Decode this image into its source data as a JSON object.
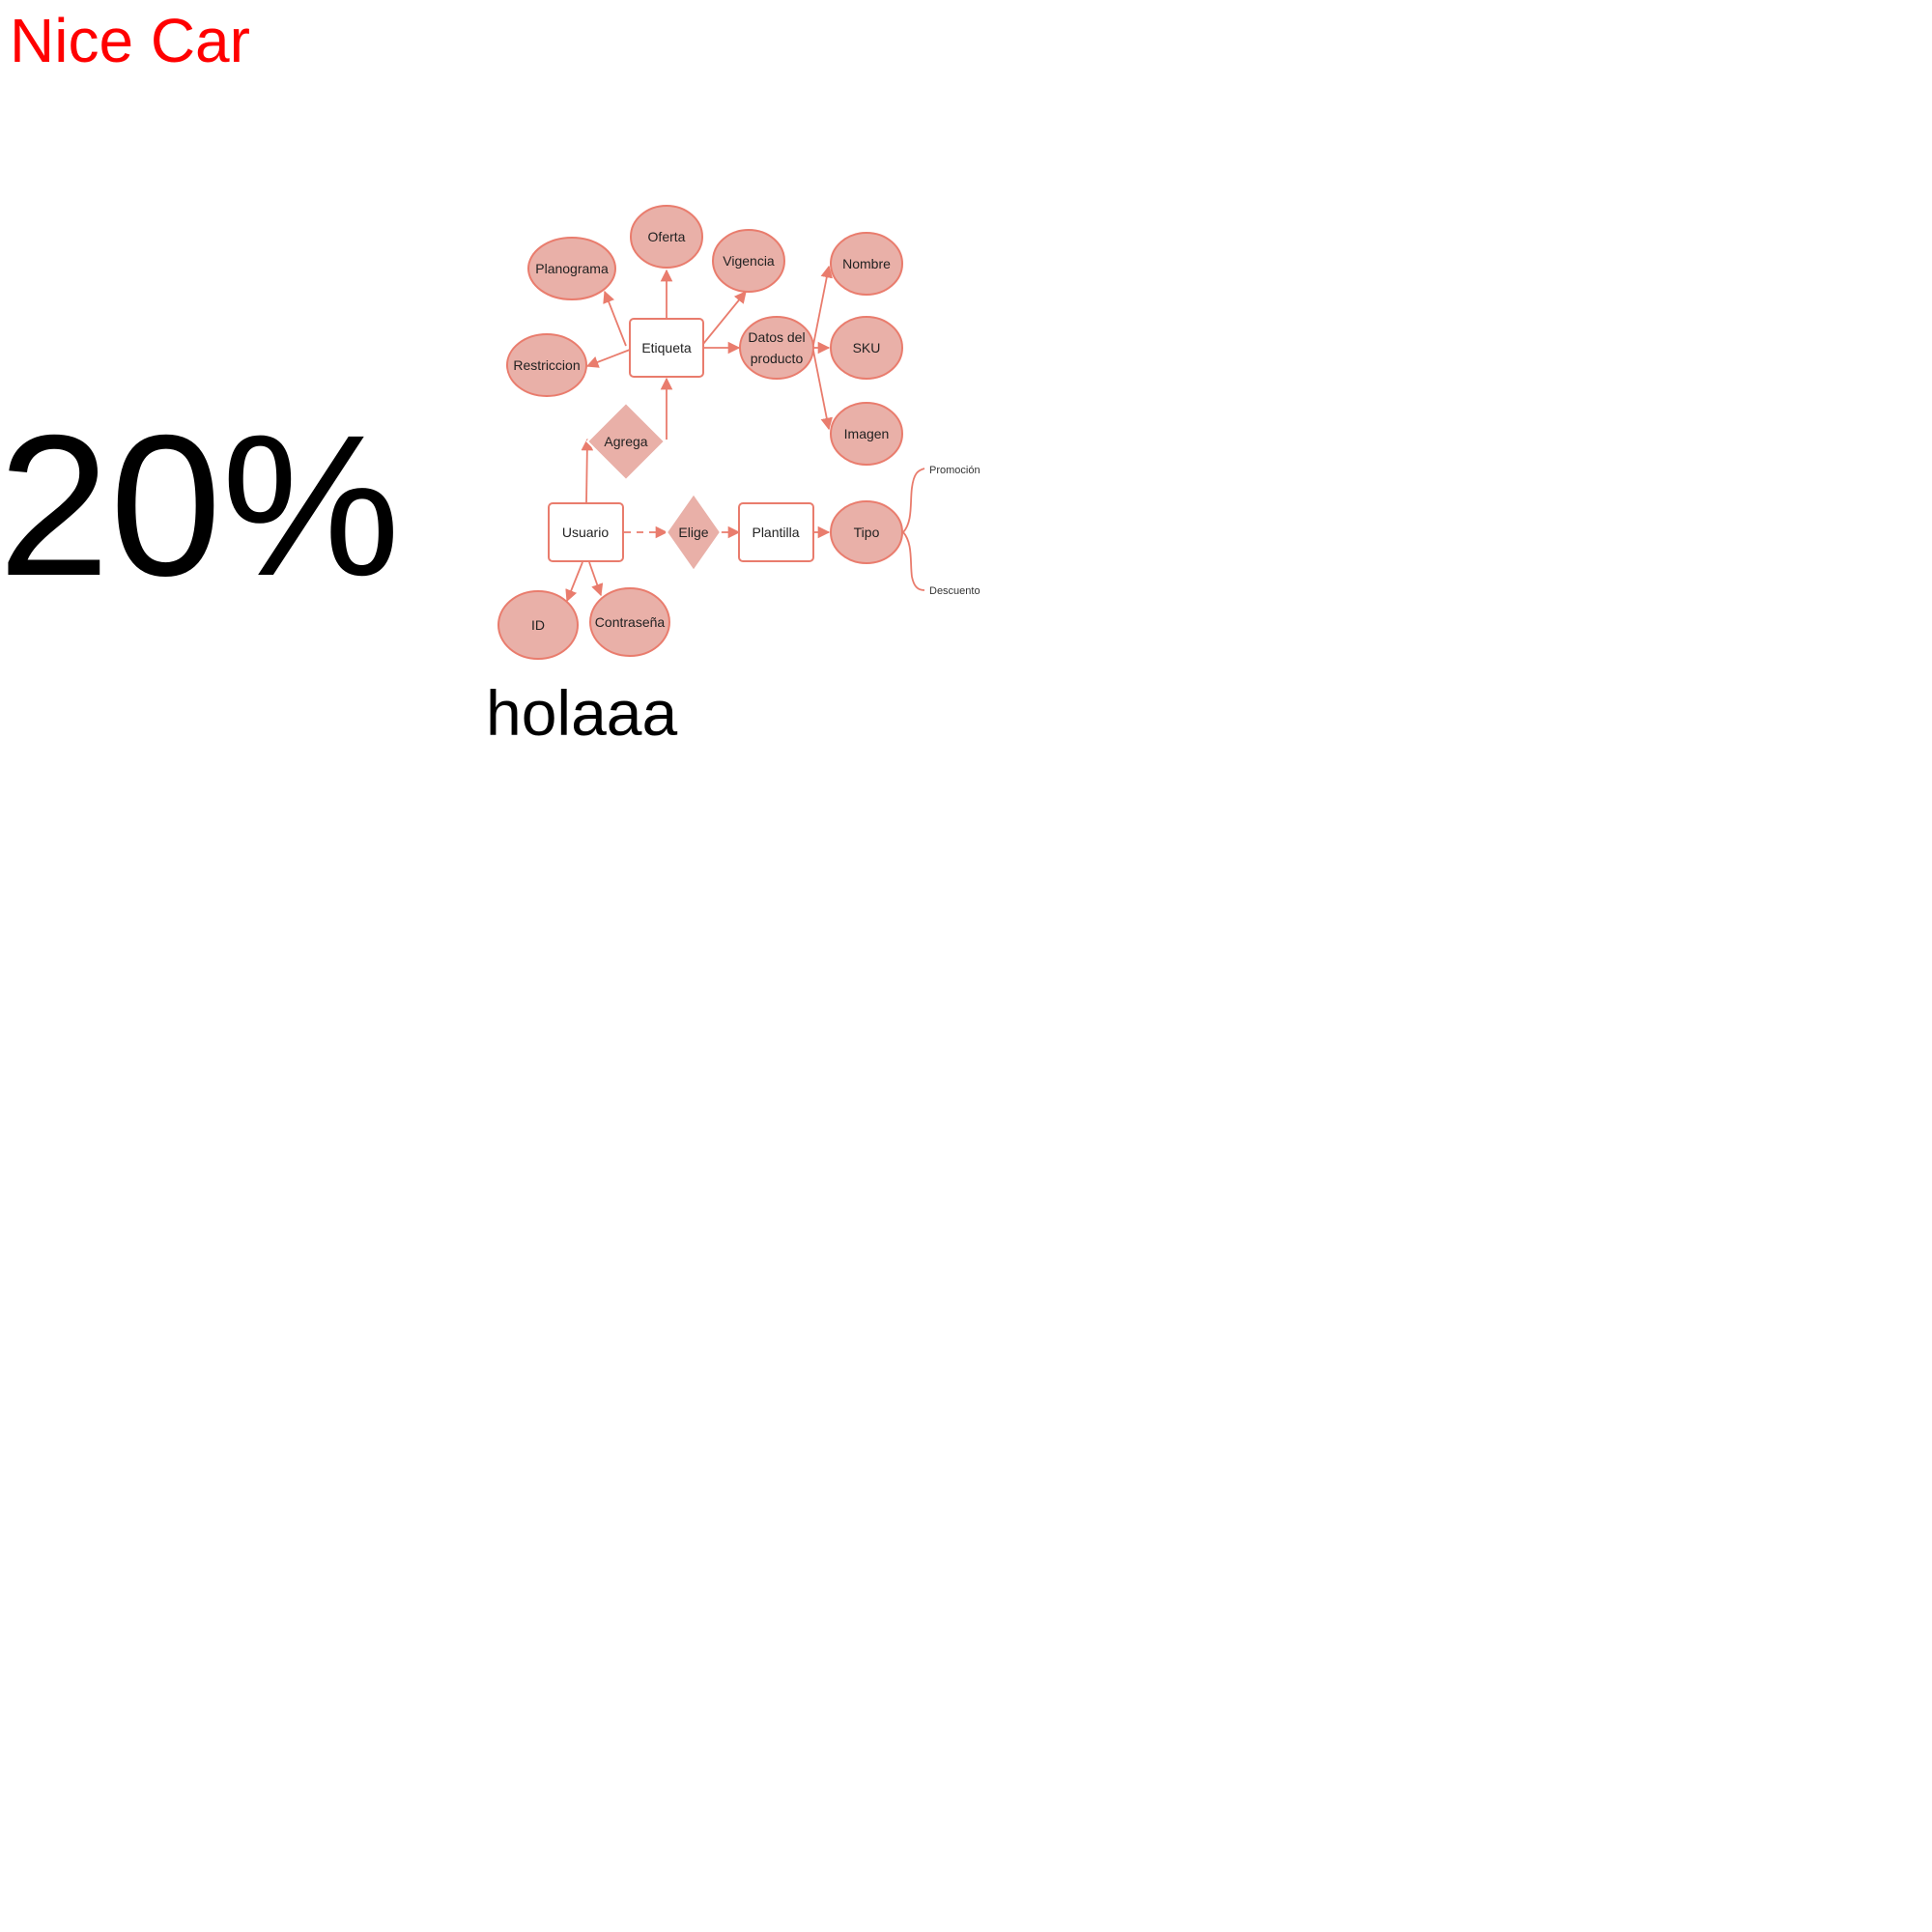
{
  "page": {
    "title": "Nice Car",
    "big_value": "20%",
    "caption": "holaaa"
  },
  "colors": {
    "title": "#ff0000",
    "node_fill": "#e9b0a8",
    "node_stroke": "#e97c6d",
    "edge": "#e97c6d"
  },
  "diagram": {
    "nodes": {
      "planograma": "Planograma",
      "oferta": "Oferta",
      "vigencia": "Vigencia",
      "nombre": "Nombre",
      "restriccion": "Restriccion",
      "etiqueta": "Etiqueta",
      "datos_line1": "Datos del",
      "datos_line2": "producto",
      "sku": "SKU",
      "imagen": "Imagen",
      "agrega": "Agrega",
      "usuario": "Usuario",
      "elige": "Elige",
      "plantilla": "Plantilla",
      "tipo": "Tipo",
      "id": "ID",
      "contrasena": "Contraseña"
    },
    "branches": {
      "promocion": "Promoción",
      "descuento": "Descuento"
    }
  }
}
